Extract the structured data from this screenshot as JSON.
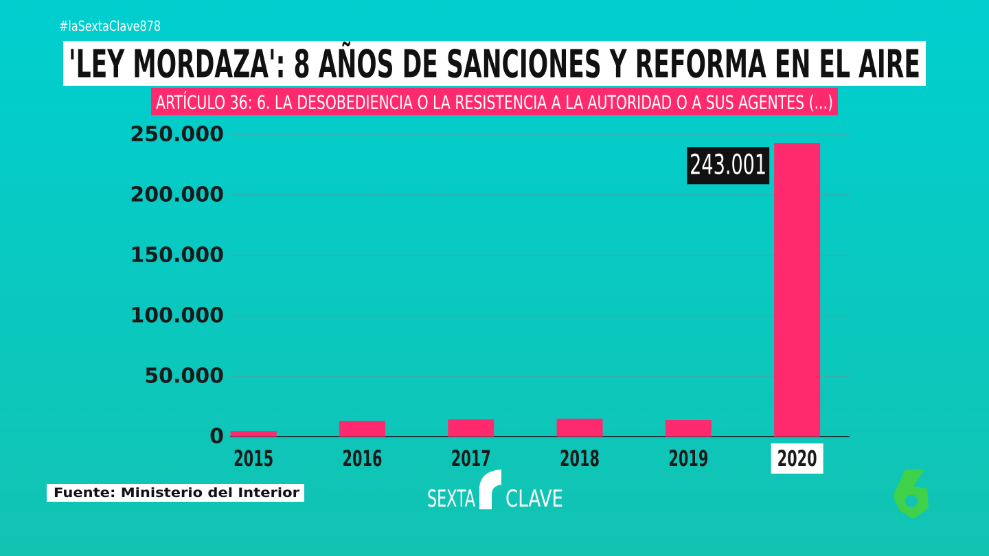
{
  "chart_data": {
    "type": "bar",
    "hashtag": "#laSextaClave878",
    "title": "'LEY MORDAZA': 8 AÑOS DE SANCIONES Y REFORMA EN EL AIRE",
    "subtitle": "ARTÍCULO 36: 6. LA DESOBEDIENCIA O LA RESISTENCIA A LA AUTORIDAD O A SUS AGENTES (...)",
    "categories": [
      "2015",
      "2016",
      "2017",
      "2018",
      "2019",
      "2020"
    ],
    "values": [
      4500,
      13000,
      14200,
      14800,
      13600,
      243001
    ],
    "value_labels": [
      null,
      null,
      null,
      null,
      null,
      "243.001"
    ],
    "color": "#ff2a6d",
    "ylim": [
      0,
      250000
    ],
    "yticks": [
      0,
      {
        "value": 50000,
        "label": "50.000"
      },
      {
        "value": 100000,
        "label": "100.000"
      },
      {
        "value": 150000,
        "label": "150.000"
      },
      {
        "value": 200000,
        "label": "200.000"
      },
      {
        "value": 250000,
        "label": "250.000"
      }
    ],
    "grid": true,
    "source": "Fuente: Ministerio del Interior",
    "brand": [
      "SEXTA",
      "CLAVE"
    ]
  }
}
